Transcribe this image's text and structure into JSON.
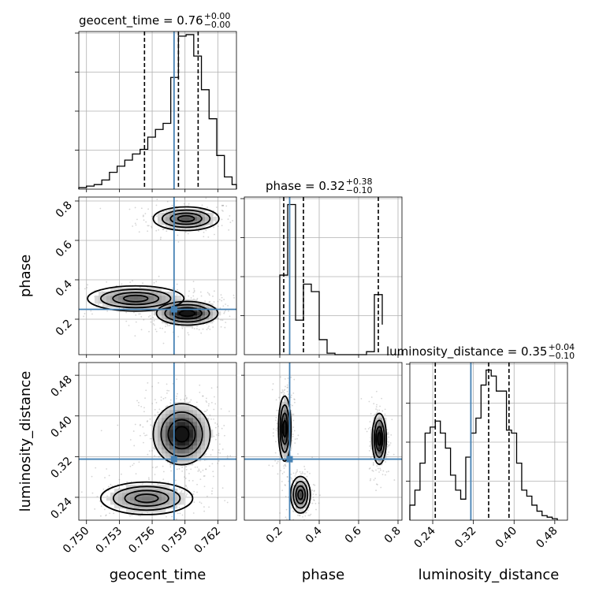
{
  "chart_data": {
    "type": "corner",
    "parameters": [
      "geocent_time",
      "phase",
      "luminosity_distance"
    ],
    "truths": {
      "geocent_time": 0.758,
      "phase": 0.25,
      "luminosity_distance": 0.315
    },
    "truth_color": "#4682b4",
    "grid": true,
    "titles": [
      {
        "param": "geocent_time",
        "text": "geocent_time = 0.76",
        "plus": "+0.00",
        "minus": "−0.00"
      },
      {
        "param": "phase",
        "text": "phase = 0.32",
        "plus": "+0.38",
        "minus": "−0.10"
      },
      {
        "param": "luminosity_distance",
        "text": "luminosity_distance = 0.35",
        "plus": "+0.04",
        "minus": "−0.10"
      }
    ],
    "axis_labels": {
      "geocent_time": "geocent_time",
      "phase": "phase",
      "luminosity_distance": "luminosity_distance"
    },
    "ranges": {
      "geocent_time": [
        0.7493,
        0.7637
      ],
      "phase": [
        0.02,
        0.82
      ],
      "luminosity_distance": [
        0.195,
        0.505
      ]
    },
    "ticks": {
      "geocent_time": [
        "0.750",
        "0.753",
        "0.756",
        "0.759",
        "0.762"
      ],
      "phase": [
        "0.2",
        "0.4",
        "0.6",
        "0.8"
      ],
      "luminosity_distance": [
        "0.24",
        "0.32",
        "0.40",
        "0.48"
      ]
    },
    "quantiles": {
      "geocent_time": [
        0.7553,
        0.7584,
        0.7602
      ],
      "phase": [
        0.22,
        0.32,
        0.7
      ],
      "luminosity_distance": [
        0.245,
        0.35,
        0.39
      ]
    },
    "hist_1d": {
      "geocent_time": {
        "edges": [
          0.7493,
          0.75,
          0.7507,
          0.7514,
          0.7521,
          0.7528,
          0.7535,
          0.7542,
          0.7549,
          0.7556,
          0.7563,
          0.757,
          0.7577,
          0.7584,
          0.7591,
          0.7598,
          0.7605,
          0.7612,
          0.7619,
          0.7626,
          0.7633,
          0.7637
        ],
        "counts": [
          1,
          2,
          3,
          6,
          11,
          15,
          19,
          23,
          26,
          34,
          39,
          43,
          73,
          100,
          101,
          87,
          65,
          46,
          22,
          8,
          3
        ]
      },
      "phase": {
        "edges": [
          0.2,
          0.24,
          0.28,
          0.32,
          0.36,
          0.4,
          0.44,
          0.48,
          0.52,
          0.56,
          0.6,
          0.64,
          0.68,
          0.72
        ],
        "counts": [
          53,
          100,
          23,
          47,
          42,
          10,
          1,
          0,
          0,
          0,
          0,
          2,
          40,
          20
        ],
        "ymax": 105
      },
      "luminosity_distance": {
        "edges": [
          0.195,
          0.205,
          0.215,
          0.225,
          0.235,
          0.245,
          0.255,
          0.265,
          0.275,
          0.285,
          0.295,
          0.305,
          0.315,
          0.325,
          0.335,
          0.345,
          0.355,
          0.365,
          0.375,
          0.385,
          0.395,
          0.405,
          0.415,
          0.425,
          0.435,
          0.445,
          0.455,
          0.465,
          0.475,
          0.485
        ],
        "counts": [
          10,
          20,
          38,
          58,
          62,
          66,
          58,
          48,
          30,
          20,
          14,
          42,
          58,
          68,
          90,
          100,
          96,
          86,
          86,
          60,
          58,
          38,
          20,
          16,
          10,
          6,
          3,
          2,
          1
        ],
        "ymax": 105
      }
    },
    "blobs_2d": [
      {
        "x": "geocent_time",
        "y": "phase",
        "modes": [
          {
            "cx": 0.7591,
            "cy": 0.71,
            "sx": 0.0015,
            "sy": 0.03,
            "w": 1.0
          },
          {
            "cx": 0.7592,
            "cy": 0.23,
            "sx": 0.0014,
            "sy": 0.03,
            "w": 1.6
          },
          {
            "cx": 0.7545,
            "cy": 0.305,
            "sx": 0.0022,
            "sy": 0.032,
            "w": 0.9
          }
        ]
      },
      {
        "x": "geocent_time",
        "y": "luminosity_distance",
        "modes": [
          {
            "cx": 0.7587,
            "cy": 0.364,
            "sx": 0.0013,
            "sy": 0.03,
            "w": 2.0
          },
          {
            "cx": 0.7555,
            "cy": 0.238,
            "sx": 0.0021,
            "sy": 0.016,
            "w": 1.0
          }
        ]
      },
      {
        "x": "phase",
        "y": "luminosity_distance",
        "modes": [
          {
            "cx": 0.225,
            "cy": 0.375,
            "sx": 0.016,
            "sy": 0.032,
            "w": 1.0
          },
          {
            "cx": 0.705,
            "cy": 0.355,
            "sx": 0.018,
            "sy": 0.025,
            "w": 1.2
          },
          {
            "cx": 0.305,
            "cy": 0.245,
            "sx": 0.025,
            "sy": 0.018,
            "w": 0.8
          }
        ]
      }
    ]
  }
}
